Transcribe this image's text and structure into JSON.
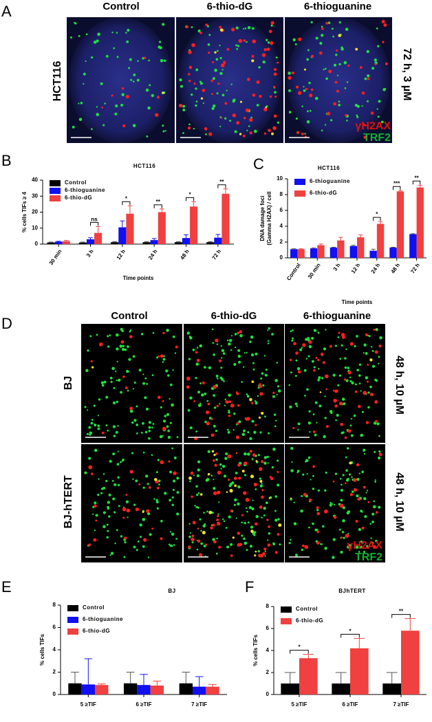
{
  "figure": {
    "panel_labels": [
      "A",
      "B",
      "C",
      "D",
      "E",
      "F"
    ],
    "panel_A": {
      "columns": [
        "Control",
        "6-thio-dG",
        "6-thioguanine"
      ],
      "row_label": "HCT116",
      "condition": "72 h, 3 µM",
      "stains": [
        "γH2AX",
        "TRF2"
      ]
    },
    "panel_D": {
      "columns": [
        "Control",
        "6-thio-dG",
        "6-thioguanine"
      ],
      "rows": [
        {
          "label": "BJ",
          "condition": "48 h, 10 µM"
        },
        {
          "label": "BJ-hTERT",
          "condition": "48 h, 10 µM"
        }
      ],
      "stains": [
        "γH2AX",
        "TRF2"
      ]
    }
  },
  "chart_data": [
    {
      "type": "bar",
      "title": "HCT116",
      "y_label": [
        "% cells TIFs ≥ 4"
      ],
      "x_label": "Time points",
      "categories": [
        "30 min",
        "3 h",
        "12 h",
        "24 h",
        "48 h",
        "72 h"
      ],
      "series": [
        {
          "name": "Control",
          "color": "#000000",
          "values": [
            1,
            1,
            1.2,
            1.2,
            1.2,
            1.2
          ],
          "errors": [
            0.3,
            0.3,
            0.3,
            0.3,
            0.3,
            0.3
          ]
        },
        {
          "name": "6-thioguanine",
          "color": "#1010f0",
          "values": [
            1.5,
            3,
            10.5,
            2.5,
            3.8,
            4
          ],
          "errors": [
            0.3,
            1,
            4,
            1,
            2,
            2
          ]
        },
        {
          "name": "6-thio-dG",
          "color": "#f04040",
          "values": [
            1.8,
            7,
            19,
            20,
            23.5,
            31.5
          ],
          "errors": [
            0.5,
            4,
            5,
            2,
            3,
            3
          ]
        }
      ],
      "significance": [
        null,
        "ns",
        "*",
        "**",
        "*",
        "**"
      ],
      "ylim": [
        0,
        40
      ],
      "yticks": [
        0,
        10,
        20,
        30,
        40
      ],
      "legend": "upper-left"
    },
    {
      "type": "bar",
      "title": "HCT116",
      "y_label": [
        "DNA damage foci",
        "(Gamma H2AX) / cell"
      ],
      "x_label": "Time points",
      "categories": [
        "Control",
        "30 min",
        "3 h",
        "12 h",
        "24 h",
        "48 h",
        "72 h"
      ],
      "series": [
        {
          "name": "6-thioguanine",
          "color": "#1010f0",
          "values": [
            1.1,
            1.2,
            1.3,
            1.5,
            0.9,
            1.3,
            3.0
          ],
          "errors": [
            0.05,
            0.05,
            0.05,
            0.1,
            0.2,
            0.05,
            0.05
          ]
        },
        {
          "name": "6-thio-dG",
          "color": "#f04040",
          "values": [
            1.1,
            1.6,
            2.2,
            2.6,
            4.3,
            8.4,
            8.9
          ],
          "errors": [
            0.05,
            0.15,
            0.4,
            0.3,
            0.3,
            0.1,
            0.3
          ]
        }
      ],
      "significance": [
        null,
        null,
        null,
        null,
        "*",
        "***",
        "**"
      ],
      "ylim": [
        0,
        10
      ],
      "yticks": [
        0,
        2,
        4,
        6,
        8,
        10
      ],
      "legend": "upper-left"
    },
    {
      "type": "bar",
      "title": "BJ",
      "y_label": [
        "% cells TIFs"
      ],
      "categories": [
        "5 ≥TIF",
        "6 ≥TIF",
        "7 ≥TIF"
      ],
      "series": [
        {
          "name": "Control",
          "color": "#000000",
          "values": [
            1,
            1,
            1
          ],
          "errors": [
            1,
            1,
            1
          ]
        },
        {
          "name": "6-thioguanine",
          "color": "#1010f0",
          "values": [
            0.9,
            0.85,
            0.7
          ],
          "errors": [
            2.3,
            0.95,
            0.9
          ]
        },
        {
          "name": "6-thio-dG",
          "color": "#f04040",
          "values": [
            0.85,
            0.8,
            0.7
          ],
          "errors": [
            0.1,
            0.4,
            0.2
          ]
        }
      ],
      "ylim": [
        0,
        8
      ],
      "yticks": [
        0,
        2,
        4,
        6,
        8
      ],
      "legend": "upper-left"
    },
    {
      "type": "bar",
      "title": "BJhTERT",
      "y_label": [
        "% cells TIFs"
      ],
      "categories": [
        "5 ≥TIF",
        "6 ≥TIF",
        "7 ≥TIF"
      ],
      "series": [
        {
          "name": "Control",
          "color": "#000000",
          "values": [
            1,
            1,
            1
          ],
          "errors": [
            1,
            1,
            1
          ]
        },
        {
          "name": "6-thio-dG",
          "color": "#f04040",
          "values": [
            3.3,
            4.2,
            5.8
          ],
          "errors": [
            0.35,
            0.9,
            1.1
          ]
        }
      ],
      "significance": [
        "*",
        "*",
        "**"
      ],
      "ylim": [
        0,
        8
      ],
      "yticks": [
        0,
        2,
        4,
        6,
        8
      ],
      "legend": "upper-left"
    }
  ]
}
